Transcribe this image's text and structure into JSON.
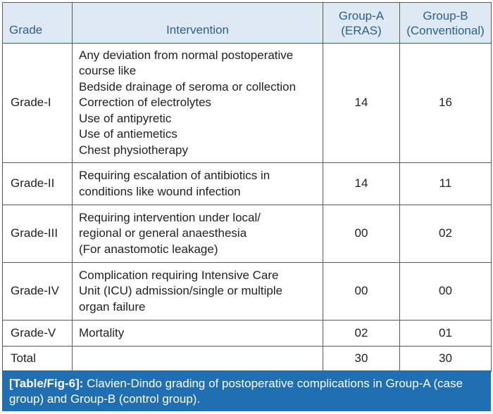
{
  "table": {
    "headers": {
      "grade": "Grade",
      "intervention": "Intervention",
      "group_a_line1": "Group-A",
      "group_a_line2": "(ERAS)",
      "group_b_line1": "Group-B",
      "group_b_line2": "(Conventional)"
    },
    "rows": [
      {
        "grade": "Grade-I",
        "intervention_lines": [
          "Any deviation from normal postoperative",
          "course like",
          "Bedside drainage of seroma or collection",
          "Correction of electrolytes",
          "Use of antipyretic",
          "Use of antiemetics",
          "Chest physiotherapy"
        ],
        "group_a": "14",
        "group_b": "16"
      },
      {
        "grade": "Grade-II",
        "intervention_lines": [
          "Requiring escalation of antibiotics in",
          "conditions like wound infection"
        ],
        "group_a": "14",
        "group_b": "11"
      },
      {
        "grade": "Grade-III",
        "intervention_lines": [
          "Requiring intervention under local/",
          "regional or general anaesthesia",
          "(For anastomotic leakage)"
        ],
        "group_a": "00",
        "group_b": "02"
      },
      {
        "grade": "Grade-IV",
        "intervention_lines": [
          "Complication requiring Intensive Care",
          "Unit (ICU) admission/single or multiple",
          "organ failure"
        ],
        "group_a": "00",
        "group_b": "00"
      },
      {
        "grade": "Grade-V",
        "intervention_lines": [
          "Mortality"
        ],
        "group_a": "02",
        "group_b": "01"
      },
      {
        "grade": "Total",
        "intervention_lines": [],
        "group_a": "30",
        "group_b": "30"
      }
    ]
  },
  "caption": {
    "label": "[Table/Fig-6]:",
    "text": " Clavien-Dindo grading of postoperative complications in Group-A (case group) and Group-B (control group)."
  }
}
